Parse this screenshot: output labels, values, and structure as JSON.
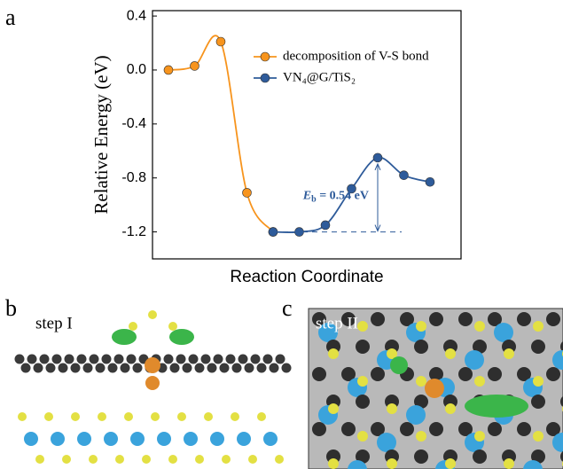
{
  "panel_labels": [
    "a",
    "b",
    "c"
  ],
  "step_labels": [
    "step I",
    "step II"
  ],
  "chart_data": {
    "type": "line",
    "ylabel": "Relative Energy (eV)",
    "xlabel": "Reaction Coordinate",
    "categories": [
      null,
      null,
      null,
      null,
      null,
      null,
      null,
      null,
      null,
      null,
      null
    ],
    "series": [
      {
        "name": "decomposition of V-S bond",
        "color": "#f7941d",
        "values": [
          0.0,
          0.03,
          0.21,
          -0.91,
          -1.2,
          null,
          null,
          null,
          null,
          null,
          null
        ]
      },
      {
        "name": "VN₄@G/TiS₂",
        "color": "#2e5b9a",
        "values": [
          null,
          null,
          null,
          null,
          -1.2,
          -1.2,
          -1.15,
          -0.88,
          -0.65,
          -0.78,
          -0.83
        ]
      }
    ],
    "annotation": {
      "parts": [
        "E",
        "b",
        " = 0.54 eV"
      ]
    },
    "ylim": [
      -1.4,
      0.44
    ],
    "yticks": [
      0.4,
      {
        "value": 0.0,
        "label": "0.0"
      },
      -0.4,
      -0.8,
      -1.2
    ],
    "legend": "upper right",
    "grid": false
  }
}
